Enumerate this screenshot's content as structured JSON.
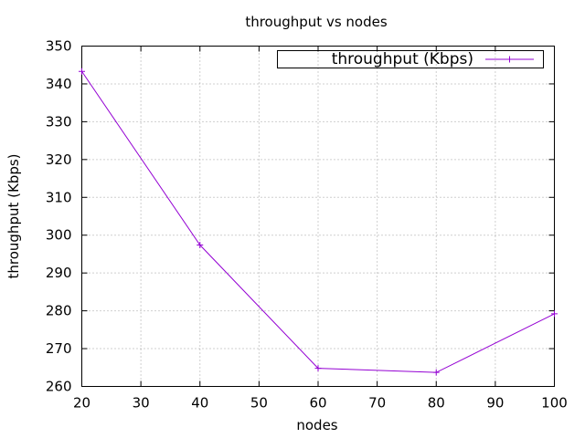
{
  "chart_data": {
    "type": "line",
    "title": "throughput vs nodes",
    "xlabel": "nodes",
    "ylabel": "throughput (Kbps)",
    "xlim": [
      20,
      100
    ],
    "ylim": [
      260,
      350
    ],
    "xticks": [
      20,
      30,
      40,
      50,
      60,
      70,
      80,
      90,
      100
    ],
    "yticks": [
      260,
      270,
      280,
      290,
      300,
      310,
      320,
      330,
      340,
      350
    ],
    "grid": true,
    "legend_position": "top-right",
    "series": [
      {
        "name": "throughput (Kbps)",
        "color": "#9400d3",
        "marker": "plus",
        "x": [
          20,
          40,
          60,
          80,
          100
        ],
        "y": [
          343.3,
          297.4,
          264.8,
          263.7,
          279.2
        ]
      }
    ]
  }
}
